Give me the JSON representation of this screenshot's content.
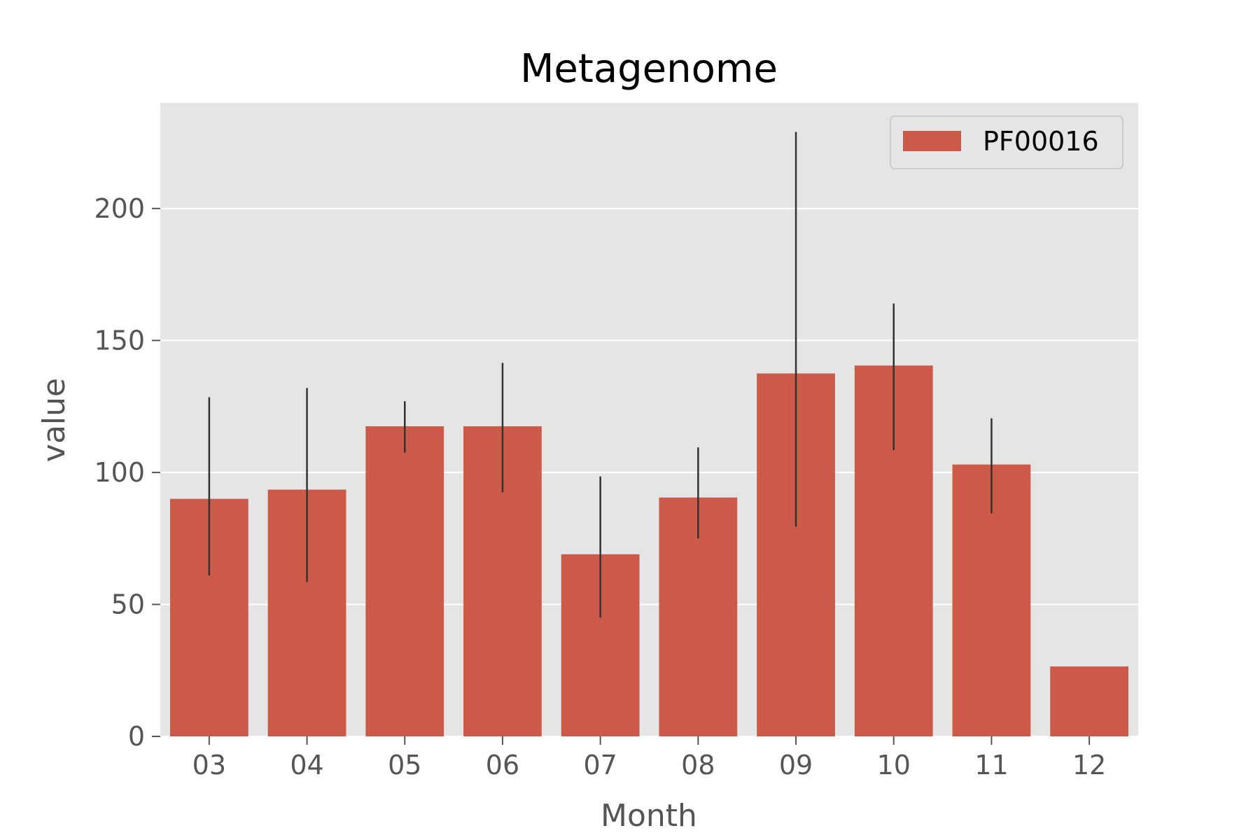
{
  "chart_data": {
    "type": "bar",
    "title": "Metagenome",
    "xlabel": "Month",
    "ylabel": "value",
    "categories": [
      "03",
      "04",
      "05",
      "06",
      "07",
      "08",
      "09",
      "10",
      "11",
      "12"
    ],
    "series": [
      {
        "name": "PF00016",
        "color": "#cb5a49",
        "values": [
          90,
          93.5,
          117.5,
          117.5,
          69,
          90.5,
          137.5,
          140.5,
          103,
          26.5
        ],
        "error_low": [
          61,
          58.5,
          107.5,
          92.5,
          45,
          75,
          79.5,
          108.5,
          84.5,
          null
        ],
        "error_high": [
          128.5,
          132,
          127,
          141.5,
          98.5,
          109.5,
          229,
          164,
          120.5,
          null
        ]
      }
    ],
    "ylim": [
      0,
      240
    ],
    "yticks": [
      0,
      50,
      100,
      150,
      200
    ],
    "grid": true,
    "legend_position": "top-right",
    "background": "#e5e5e5",
    "error_color": "#333333"
  }
}
